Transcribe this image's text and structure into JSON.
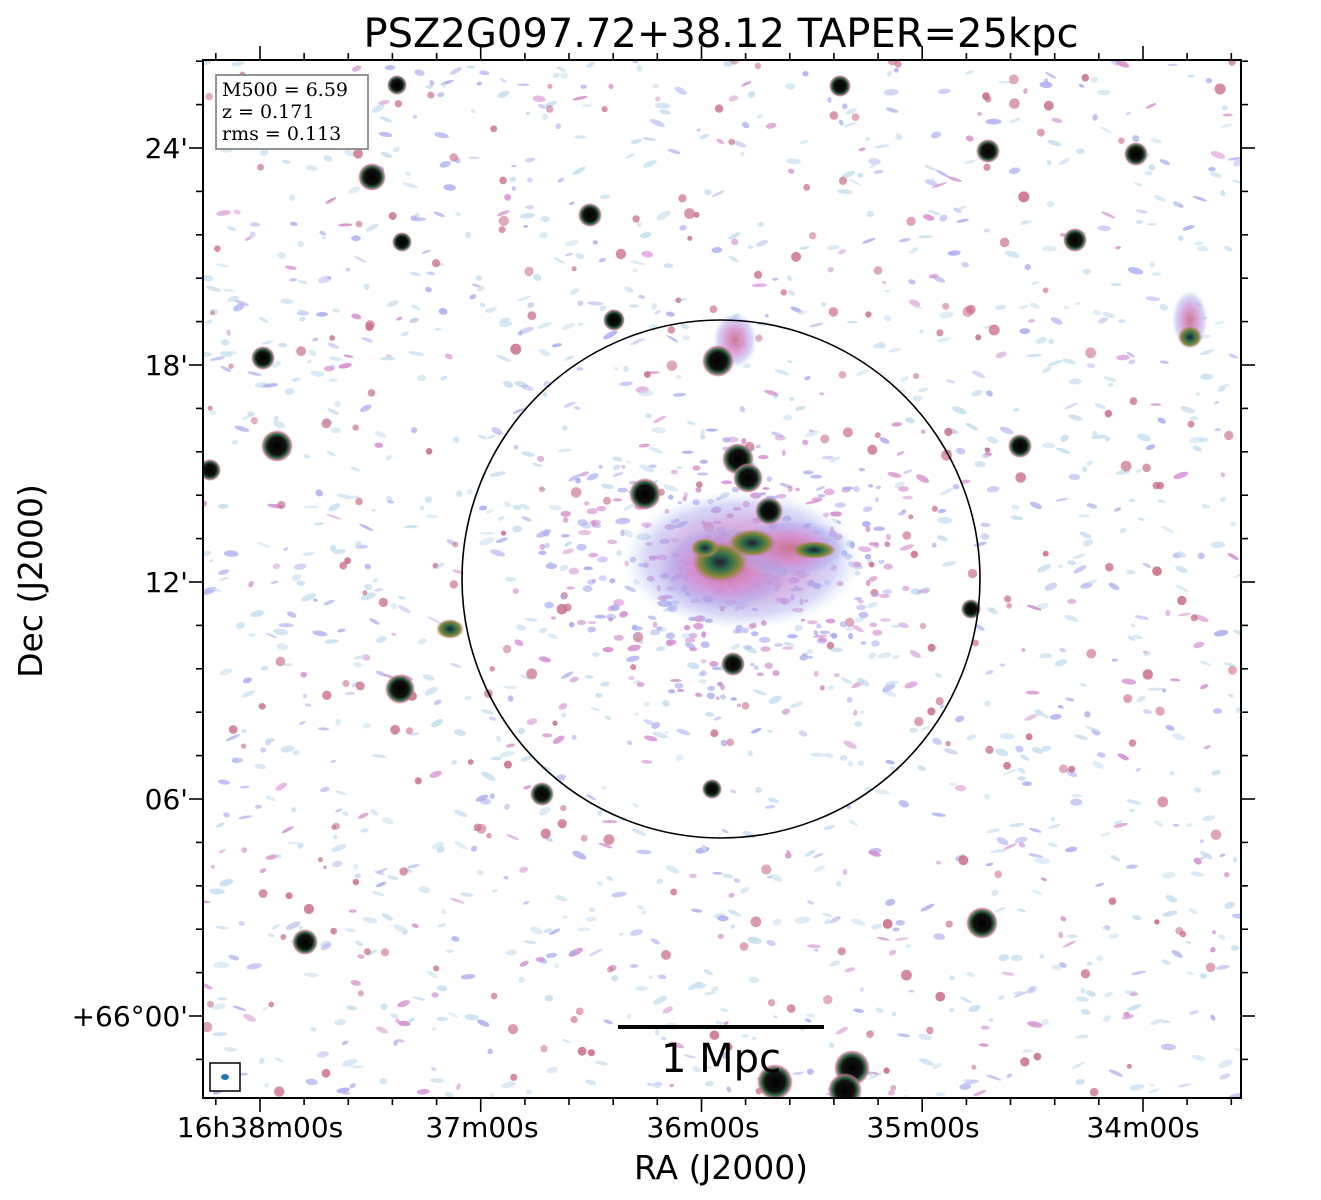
{
  "figure": {
    "title": "PSZ2G097.72+38.12 TAPER=25kpc",
    "xlabel": "RA (J2000)",
    "ylabel": "Dec (J2000)",
    "x_ticks": [
      "16h38m00s",
      "37m00s",
      "36m00s",
      "35m00s",
      "34m00s"
    ],
    "y_ticks": [
      "24'",
      "18'",
      "12'",
      "06'",
      "+66°00'"
    ],
    "info": {
      "m500": "M500 = 6.59",
      "z": "z = 0.171",
      "rms": "rms = 0.113"
    },
    "scale_bar_label": "1 Mpc",
    "circle_color": "#000000",
    "colormap": [
      "#ffffff",
      "#c6dff0",
      "#a9a9ef",
      "#d48ed0",
      "#c96f8a",
      "#8e8a3c",
      "#2f6e48",
      "#1c1f35",
      "#000000"
    ]
  }
}
